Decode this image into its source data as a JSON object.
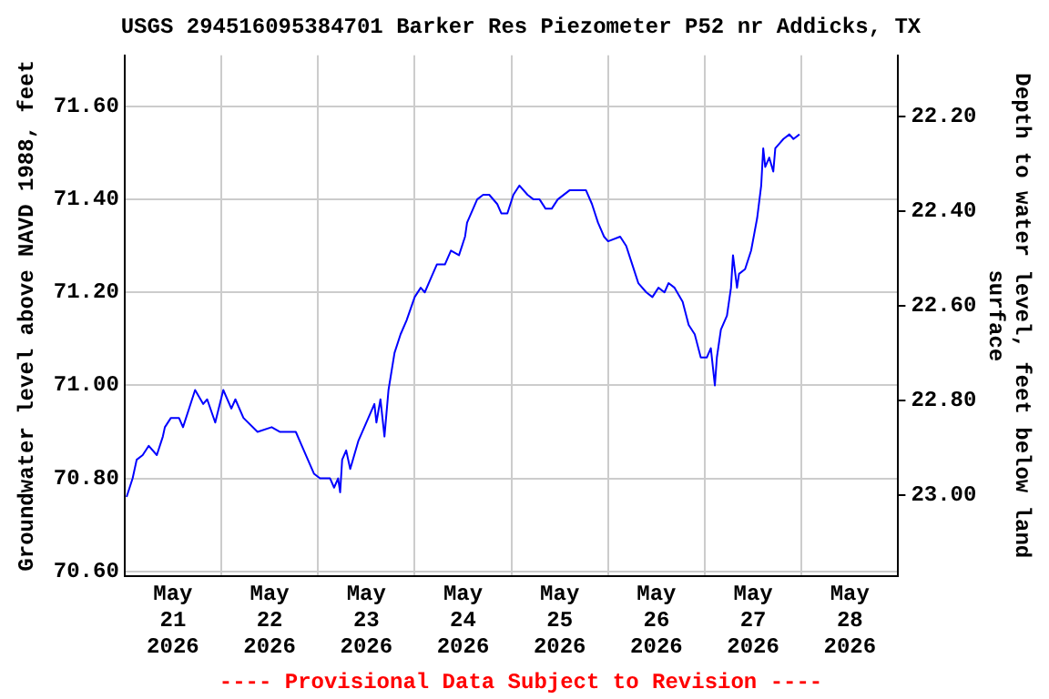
{
  "chart_data": {
    "type": "line",
    "title": "USGS 294516095384701 Barker Res Piezometer P52 nr Addicks, TX",
    "ylabel": "Groundwater level above NAVD 1988, feet",
    "y2label": "Depth to water level, feet below land surface",
    "annotations": [
      "---- Provisional Data Subject to Revision ----"
    ],
    "xlim": [
      "2026-05-21T00:00",
      "2026-05-29T00:00"
    ],
    "xticks": [
      {
        "value": "2026-05-21T12:00",
        "label": "May 21 2026"
      },
      {
        "value": "2026-05-22T00:00",
        "label": null
      },
      {
        "value": "2026-05-22T12:00",
        "label": "May 22 2026"
      },
      {
        "value": "2026-05-23T00:00",
        "label": null
      },
      {
        "value": "2026-05-23T12:00",
        "label": "May 23 2026"
      },
      {
        "value": "2026-05-24T00:00",
        "label": null
      },
      {
        "value": "2026-05-24T12:00",
        "label": "May 24 2026"
      },
      {
        "value": "2026-05-25T00:00",
        "label": null
      },
      {
        "value": "2026-05-25T12:00",
        "label": "May 25 2026"
      },
      {
        "value": "2026-05-26T00:00",
        "label": null
      },
      {
        "value": "2026-05-26T12:00",
        "label": "May 26 2026"
      },
      {
        "value": "2026-05-27T00:00",
        "label": null
      },
      {
        "value": "2026-05-27T12:00",
        "label": "May 27 2026"
      },
      {
        "value": "2026-05-28T00:00",
        "label": null
      },
      {
        "value": "2026-05-28T12:00",
        "label": "May 28 2026"
      }
    ],
    "ylim": [
      70.59,
      71.71
    ],
    "yticks": [
      {
        "value": 70.6,
        "label": "70.60"
      },
      {
        "value": 70.8,
        "label": "70.80"
      },
      {
        "value": 71.0,
        "label": "71.00"
      },
      {
        "value": 71.2,
        "label": "71.20"
      },
      {
        "value": 71.4,
        "label": "71.40"
      },
      {
        "value": 71.6,
        "label": "71.60"
      }
    ],
    "y2lim": [
      23.17,
      22.07
    ],
    "y2ticks": [
      {
        "value": 23.0,
        "label": "23.00"
      },
      {
        "value": 22.8,
        "label": "22.80"
      },
      {
        "value": 22.6,
        "label": "22.60"
      },
      {
        "value": 22.4,
        "label": "22.40"
      },
      {
        "value": 22.2,
        "label": "22.20"
      }
    ],
    "grid": true,
    "legend": false,
    "marker": "none",
    "line_style": "solid",
    "series": [
      {
        "color": "#0000ff",
        "x": [
          "2026-05-21T00:30",
          "2026-05-21T02:00",
          "2026-05-21T03:00",
          "2026-05-21T04:30",
          "2026-05-21T06:00",
          "2026-05-21T08:00",
          "2026-05-21T09:30",
          "2026-05-21T10:00",
          "2026-05-21T11:30",
          "2026-05-21T13:30",
          "2026-05-21T14:30",
          "2026-05-21T16:00",
          "2026-05-21T17:30",
          "2026-05-21T19:30",
          "2026-05-21T20:30",
          "2026-05-21T22:30",
          "2026-05-22T00:30",
          "2026-05-22T02:30",
          "2026-05-22T03:30",
          "2026-05-22T05:30",
          "2026-05-22T09:00",
          "2026-05-22T12:30",
          "2026-05-22T14:30",
          "2026-05-22T18:30",
          "2026-05-22T20:00",
          "2026-05-22T21:30",
          "2026-05-22T23:00",
          "2026-05-23T00:30",
          "2026-05-23T03:00",
          "2026-05-23T04:00",
          "2026-05-23T05:00",
          "2026-05-23T05:30",
          "2026-05-23T06:00",
          "2026-05-23T07:00",
          "2026-05-23T08:00",
          "2026-05-23T10:00",
          "2026-05-23T11:30",
          "2026-05-23T13:00",
          "2026-05-23T14:00",
          "2026-05-23T14:30",
          "2026-05-23T15:30",
          "2026-05-23T16:30",
          "2026-05-23T17:30",
          "2026-05-23T19:00",
          "2026-05-23T20:30",
          "2026-05-23T22:00",
          "2026-05-24T00:00",
          "2026-05-24T01:30",
          "2026-05-24T02:30",
          "2026-05-24T04:00",
          "2026-05-24T05:30",
          "2026-05-24T07:30",
          "2026-05-24T09:00",
          "2026-05-24T11:00",
          "2026-05-24T12:30",
          "2026-05-24T13:00",
          "2026-05-24T14:30",
          "2026-05-24T15:30",
          "2026-05-24T17:00",
          "2026-05-24T18:30",
          "2026-05-24T20:30",
          "2026-05-24T21:30",
          "2026-05-24T23:00",
          "2026-05-25T00:30",
          "2026-05-25T02:00",
          "2026-05-25T04:00",
          "2026-05-25T05:30",
          "2026-05-25T07:00",
          "2026-05-25T08:30",
          "2026-05-25T10:00",
          "2026-05-25T11:30",
          "2026-05-25T14:30",
          "2026-05-25T18:30",
          "2026-05-25T20:00",
          "2026-05-25T21:30",
          "2026-05-25T23:00",
          "2026-05-26T00:00",
          "2026-05-26T03:00",
          "2026-05-26T04:30",
          "2026-05-26T06:00",
          "2026-05-26T07:30",
          "2026-05-26T09:30",
          "2026-05-26T11:00",
          "2026-05-26T12:30",
          "2026-05-26T14:00",
          "2026-05-26T15:00",
          "2026-05-26T16:30",
          "2026-05-26T18:30",
          "2026-05-26T20:00",
          "2026-05-26T21:30",
          "2026-05-26T23:00",
          "2026-05-27T00:30",
          "2026-05-27T01:30",
          "2026-05-27T02:30",
          "2026-05-27T03:00",
          "2026-05-27T04:00",
          "2026-05-27T05:30",
          "2026-05-27T06:30",
          "2026-05-27T07:00",
          "2026-05-27T08:00",
          "2026-05-27T08:30",
          "2026-05-27T10:00",
          "2026-05-27T11:30",
          "2026-05-27T13:00",
          "2026-05-27T14:00",
          "2026-05-27T14:30",
          "2026-05-27T15:00",
          "2026-05-27T16:00",
          "2026-05-27T17:00",
          "2026-05-27T17:30",
          "2026-05-27T18:30",
          "2026-05-27T19:30",
          "2026-05-27T21:00",
          "2026-05-27T22:00",
          "2026-05-27T23:30"
        ],
        "values": [
          70.76,
          70.8,
          70.84,
          70.85,
          70.87,
          70.85,
          70.89,
          70.91,
          70.93,
          70.93,
          70.91,
          70.95,
          70.99,
          70.96,
          70.97,
          70.92,
          70.99,
          70.95,
          70.97,
          70.93,
          70.9,
          70.91,
          70.9,
          70.9,
          70.87,
          70.84,
          70.81,
          70.8,
          70.8,
          70.78,
          70.8,
          70.77,
          70.84,
          70.86,
          70.82,
          70.88,
          70.91,
          70.94,
          70.96,
          70.92,
          70.97,
          70.89,
          70.99,
          71.07,
          71.11,
          71.14,
          71.19,
          71.21,
          71.2,
          71.23,
          71.26,
          71.26,
          71.29,
          71.28,
          71.32,
          71.35,
          71.38,
          71.4,
          71.41,
          71.41,
          71.39,
          71.37,
          71.37,
          71.41,
          71.43,
          71.41,
          71.4,
          71.4,
          71.38,
          71.38,
          71.4,
          71.42,
          71.42,
          71.39,
          71.35,
          71.32,
          71.31,
          71.32,
          71.3,
          71.26,
          71.22,
          71.2,
          71.19,
          71.21,
          71.2,
          71.22,
          71.21,
          71.18,
          71.13,
          71.11,
          71.06,
          71.06,
          71.08,
          71.0,
          71.06,
          71.12,
          71.15,
          71.21,
          71.28,
          71.21,
          71.24,
          71.25,
          71.29,
          71.36,
          71.43,
          71.51,
          71.47,
          71.49,
          71.46,
          71.51,
          71.52,
          71.53,
          71.54,
          71.53,
          71.54
        ]
      }
    ]
  }
}
